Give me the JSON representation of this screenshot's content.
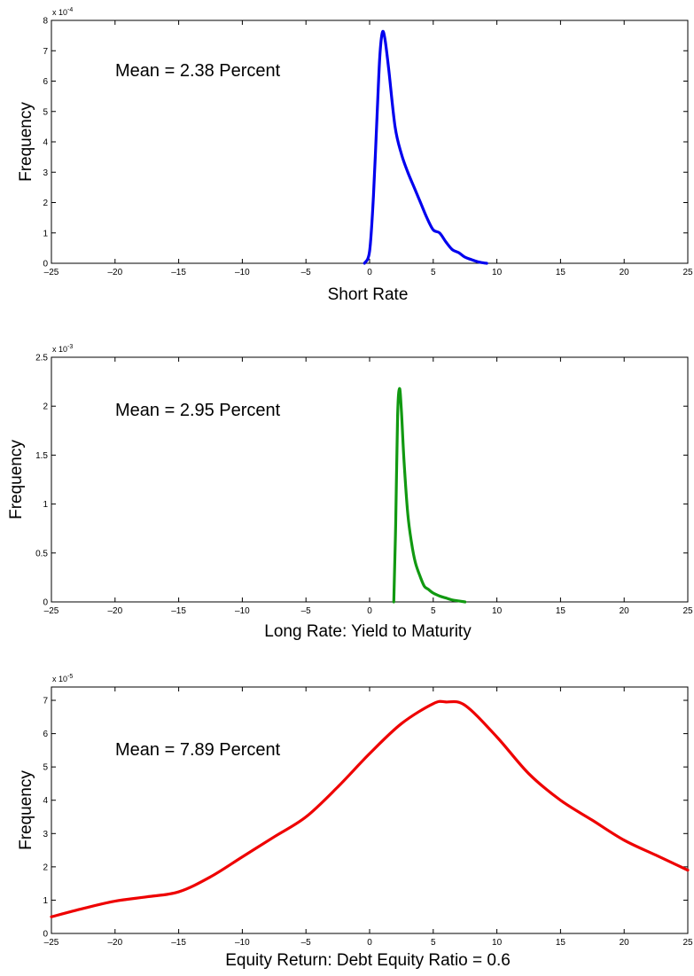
{
  "chart_data": [
    {
      "type": "line",
      "annotation": "Mean = 2.38 Percent",
      "xlabel": "Short Rate",
      "ylabel": "Frequency",
      "xlim": [
        -25,
        25
      ],
      "ylim": [
        0,
        8
      ],
      "y_exponent_label": "x 10",
      "y_exponent": "-4",
      "x_ticks": [
        "–25",
        "–20",
        "–15",
        "–10",
        "–5",
        "0",
        "5",
        "10",
        "15",
        "20",
        "25"
      ],
      "y_ticks": [
        "0",
        "1",
        "2",
        "3",
        "4",
        "5",
        "6",
        "7",
        "8"
      ],
      "color": "#0000ee",
      "series": [
        {
          "x": [
            -0.4,
            0,
            0.3,
            0.6,
            0.8,
            1.0,
            1.2,
            1.5,
            2.0,
            2.5,
            3.0,
            3.5,
            4.0,
            4.5,
            5.0,
            5.5,
            6.0,
            6.5,
            7.0,
            7.5,
            8.0,
            8.5,
            9.0,
            9.2
          ],
          "values": [
            0,
            0.4,
            2.2,
            5.0,
            6.8,
            7.6,
            7.4,
            6.4,
            4.5,
            3.6,
            3.0,
            2.5,
            2.0,
            1.5,
            1.1,
            1.0,
            0.7,
            0.45,
            0.35,
            0.2,
            0.12,
            0.05,
            0.01,
            0
          ]
        }
      ]
    },
    {
      "type": "line",
      "annotation": "Mean = 2.95 Percent",
      "xlabel": "Long Rate: Yield to Maturity",
      "ylabel": "Frequency",
      "xlim": [
        -25,
        25
      ],
      "ylim": [
        0,
        2.5
      ],
      "y_exponent_label": "x 10",
      "y_exponent": "-3",
      "x_ticks": [
        "–25",
        "–20",
        "–15",
        "–10",
        "–5",
        "0",
        "5",
        "10",
        "15",
        "20",
        "25"
      ],
      "y_ticks": [
        "0",
        "0.5",
        "1",
        "1.5",
        "2",
        "2.5"
      ],
      "color": "#119911",
      "series": [
        {
          "x": [
            1.9,
            2.05,
            2.2,
            2.35,
            2.5,
            2.7,
            3.0,
            3.3,
            3.6,
            4.0,
            4.3,
            4.6,
            5.0,
            5.5,
            6.0,
            6.5,
            7.0,
            7.5
          ],
          "values": [
            0,
            0.8,
            1.9,
            2.18,
            1.95,
            1.45,
            0.9,
            0.6,
            0.4,
            0.25,
            0.16,
            0.13,
            0.09,
            0.06,
            0.04,
            0.02,
            0.01,
            0
          ]
        }
      ]
    },
    {
      "type": "line",
      "annotation": "Mean = 7.89 Percent",
      "xlabel": "Equity Return: Debt Equity Ratio = 0.6",
      "ylabel": "Frequency",
      "xlim": [
        -25,
        25
      ],
      "ylim": [
        0,
        7.4
      ],
      "y_exponent_label": "x 10",
      "y_exponent": "-5",
      "x_ticks": [
        "–25",
        "–20",
        "–15",
        "–10",
        "–5",
        "0",
        "5",
        "10",
        "15",
        "20",
        "25"
      ],
      "y_ticks": [
        "0",
        "1",
        "2",
        "3",
        "4",
        "5",
        "6",
        "7"
      ],
      "color": "#ee0000",
      "series": [
        {
          "x": [
            -25,
            -22.5,
            -20,
            -17.5,
            -15,
            -12.5,
            -10,
            -7.5,
            -5,
            -2.5,
            0,
            2.5,
            5,
            6,
            7.5,
            10,
            12.5,
            15,
            17.5,
            20,
            22.5,
            25
          ],
          "values": [
            0.5,
            0.75,
            0.97,
            1.1,
            1.25,
            1.7,
            2.3,
            2.9,
            3.5,
            4.4,
            5.4,
            6.3,
            6.9,
            6.95,
            6.85,
            5.9,
            4.8,
            4.0,
            3.4,
            2.8,
            2.35,
            1.9
          ]
        }
      ]
    }
  ]
}
